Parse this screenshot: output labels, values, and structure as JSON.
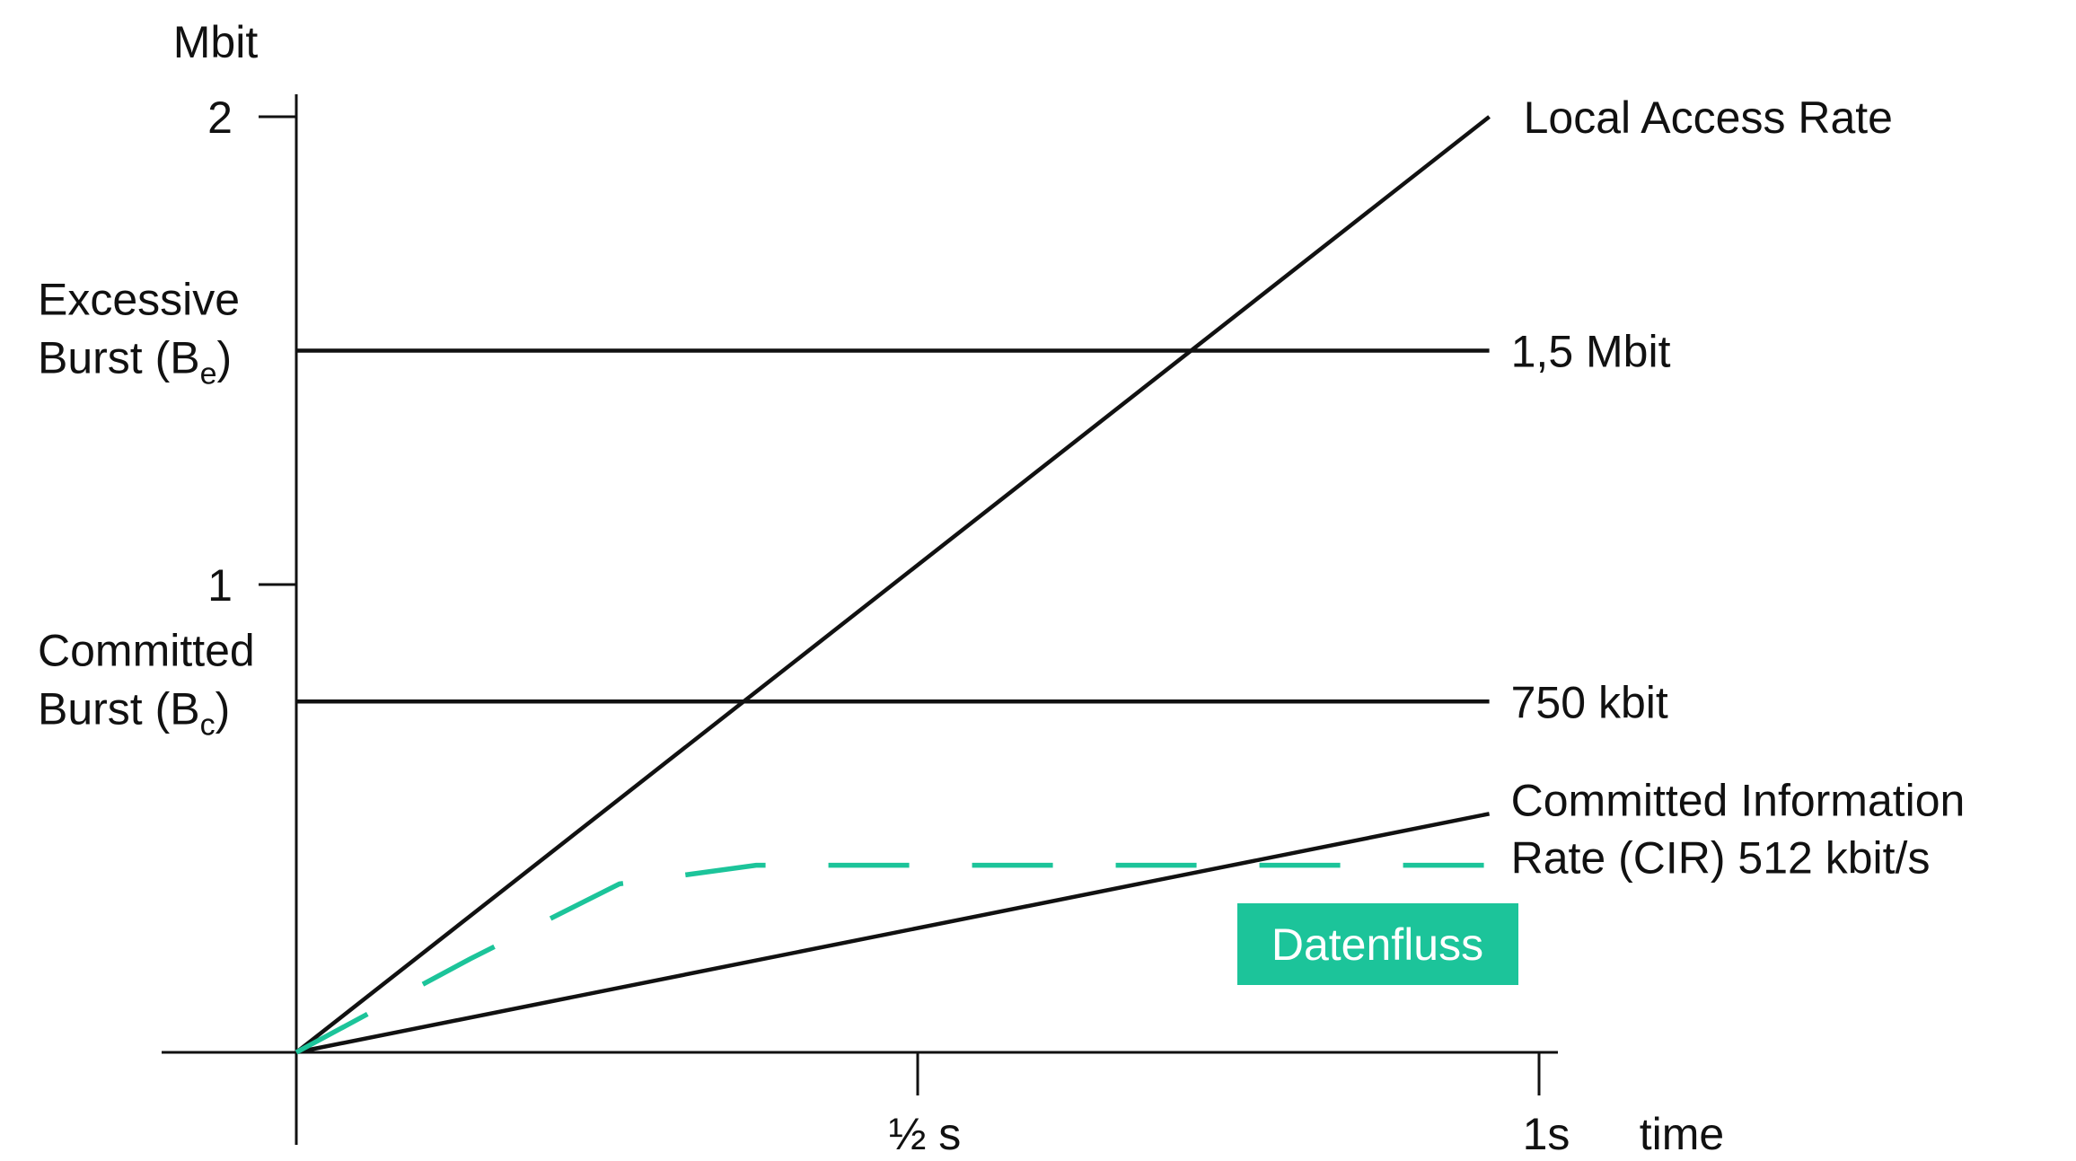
{
  "chart_data": {
    "type": "line",
    "ylabel": "Mbit",
    "xlabel": "time",
    "xlim": [
      0,
      1
    ],
    "ylim": [
      0,
      2
    ],
    "x_ticks": [
      {
        "value": 0.5,
        "label": "½ s"
      },
      {
        "value": 1,
        "label": "1s"
      }
    ],
    "y_ticks": [
      {
        "value": 1,
        "label": "1"
      },
      {
        "value": 2,
        "label": "2"
      }
    ],
    "y_annotations": [
      {
        "value": 1.5,
        "line1": "Excessive",
        "line2_base": "Burst (B",
        "line2_sub": "e",
        "line2_end": ")"
      },
      {
        "value": 0.75,
        "line1": "Committed",
        "line2_base": "Burst (B",
        "line2_sub": "c",
        "line2_end": ")"
      }
    ],
    "series": [
      {
        "name": "Local Access Rate",
        "x": [
          0,
          0.96
        ],
        "y": [
          0,
          2
        ],
        "color": "#111111",
        "style": "solid"
      },
      {
        "name": "1,5 Mbit",
        "x": [
          0,
          0.96
        ],
        "y": [
          1.5,
          1.5
        ],
        "color": "#111111",
        "style": "solid"
      },
      {
        "name": "750 kbit",
        "x": [
          0,
          0.96
        ],
        "y": [
          0.75,
          0.75
        ],
        "color": "#111111",
        "style": "solid"
      },
      {
        "name": "Committed Information Rate (CIR) 512 kbit/s",
        "label_lines": [
          "Committed Information",
          "Rate (CIR) 512 kbit/s"
        ],
        "x": [
          0,
          0.96
        ],
        "y": [
          0,
          0.51
        ],
        "color": "#111111",
        "style": "solid"
      },
      {
        "x": [
          0,
          0.14,
          0.26,
          0.37,
          0.96
        ],
        "y": [
          0,
          0.2,
          0.36,
          0.4,
          0.4
        ],
        "color": "#1cc49a",
        "style": "dashed"
      }
    ],
    "legend": {
      "label": "Datenfluss",
      "color": "#1cc49a",
      "placement": "bottom-right"
    },
    "grid": false
  }
}
